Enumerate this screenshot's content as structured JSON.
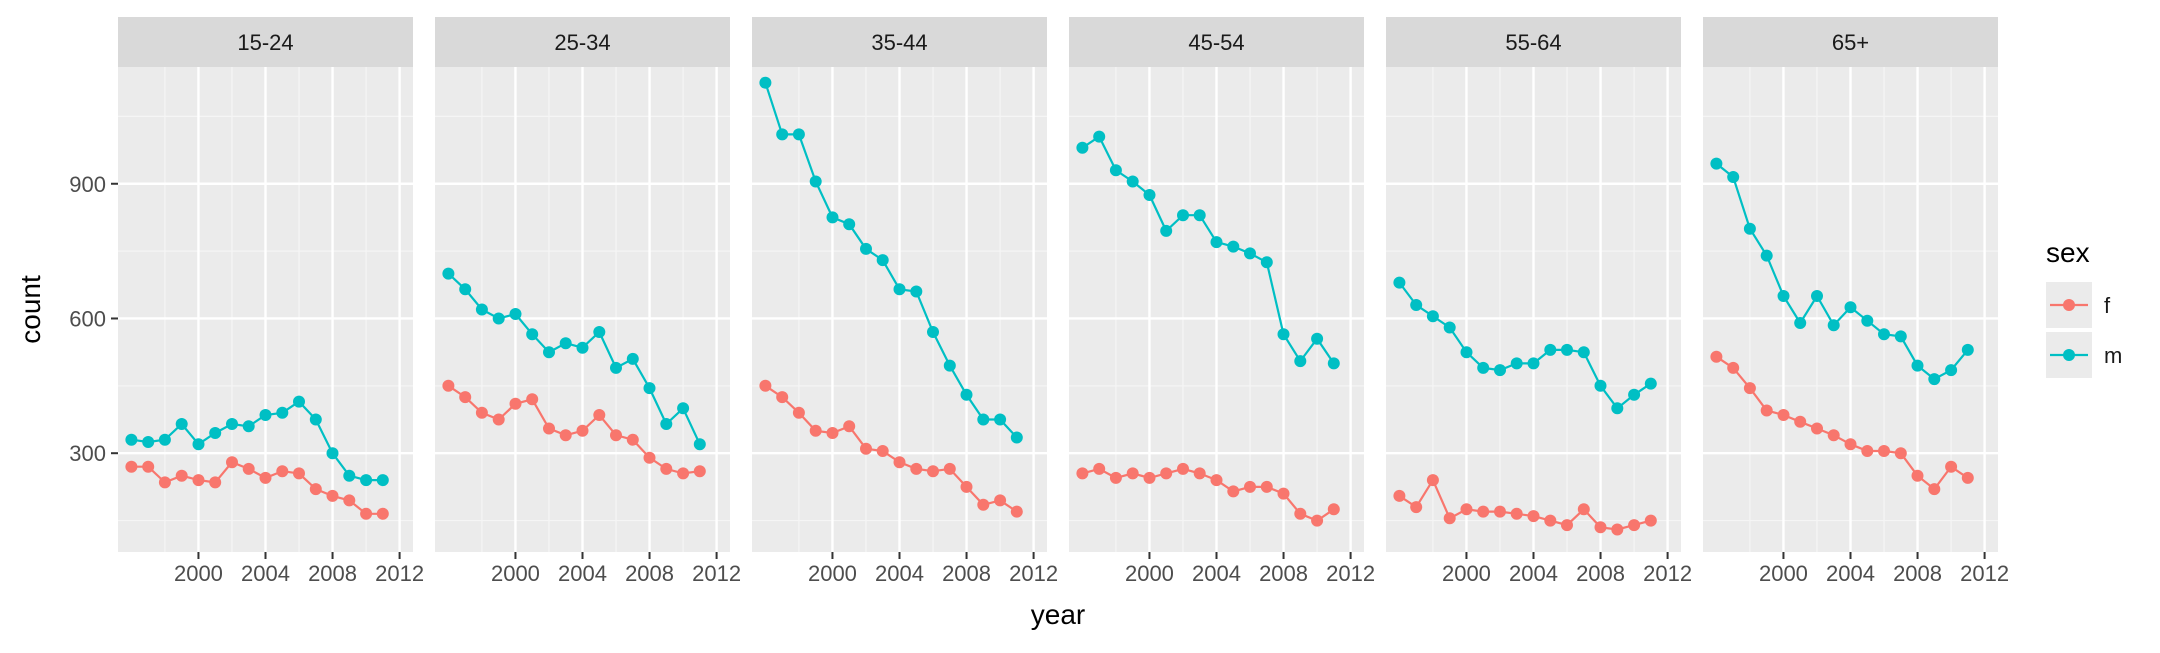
{
  "chart_data": {
    "type": "line",
    "facet_variable": "age group",
    "panels": [
      "15-24",
      "25-34",
      "35-44",
      "45-54",
      "55-64",
      "65+"
    ],
    "x": [
      1996,
      1997,
      1998,
      1999,
      2000,
      2001,
      2002,
      2003,
      2004,
      2005,
      2006,
      2007,
      2008,
      2009,
      2010,
      2011,
      2012
    ],
    "xlabel": "year",
    "ylabel": "count",
    "xlim": [
      1995.2,
      2012.8
    ],
    "ylim": [
      80,
      1160
    ],
    "x_ticks": [
      2000,
      2004,
      2008,
      2012
    ],
    "x_tick_labels": [
      "2000",
      "2004",
      "2008",
      "2012"
    ],
    "y_ticks": [
      300,
      600,
      900
    ],
    "y_tick_labels": [
      "300",
      "600",
      "900"
    ],
    "grid": true,
    "legend": {
      "title": "sex",
      "position": "right",
      "entries": [
        {
          "label": "f",
          "color": "#F8766D"
        },
        {
          "label": "m",
          "color": "#00BFC4"
        }
      ]
    },
    "colors": {
      "f": "#F8766D",
      "m": "#00BFC4",
      "panel_background": "#EBEBEB",
      "gridline": "#FFFFFF",
      "strip_background": "#D9D9D9"
    },
    "facets": [
      {
        "panel": "15-24",
        "series": [
          {
            "name": "f",
            "values": [
              270,
              270,
              235,
              250,
              240,
              235,
              280,
              265,
              245,
              260,
              255,
              220,
              205,
              195,
              165,
              165,
              null
            ]
          },
          {
            "name": "m",
            "values": [
              330,
              325,
              330,
              365,
              320,
              345,
              365,
              360,
              385,
              390,
              415,
              375,
              300,
              250,
              240,
              240,
              null
            ]
          }
        ]
      },
      {
        "panel": "25-34",
        "series": [
          {
            "name": "f",
            "values": [
              450,
              425,
              390,
              375,
              410,
              420,
              355,
              340,
              350,
              385,
              340,
              330,
              290,
              265,
              255,
              260,
              null
            ]
          },
          {
            "name": "m",
            "values": [
              700,
              665,
              620,
              600,
              610,
              565,
              525,
              545,
              535,
              570,
              490,
              510,
              445,
              365,
              400,
              320,
              null
            ]
          }
        ]
      },
      {
        "panel": "35-44",
        "series": [
          {
            "name": "f",
            "values": [
              450,
              425,
              390,
              350,
              345,
              360,
              310,
              305,
              280,
              265,
              260,
              265,
              225,
              185,
              195,
              170,
              null
            ]
          },
          {
            "name": "m",
            "values": [
              1125,
              1010,
              1010,
              905,
              825,
              810,
              755,
              730,
              665,
              660,
              570,
              495,
              430,
              375,
              375,
              335,
              null
            ]
          }
        ]
      },
      {
        "panel": "45-54",
        "series": [
          {
            "name": "f",
            "values": [
              255,
              265,
              245,
              255,
              245,
              255,
              265,
              255,
              240,
              215,
              225,
              225,
              210,
              165,
              150,
              175,
              null
            ]
          },
          {
            "name": "m",
            "values": [
              980,
              1005,
              930,
              905,
              875,
              795,
              830,
              830,
              770,
              760,
              745,
              725,
              565,
              505,
              555,
              500,
              null
            ]
          }
        ]
      },
      {
        "panel": "55-64",
        "series": [
          {
            "name": "f",
            "values": [
              205,
              180,
              240,
              155,
              175,
              170,
              170,
              165,
              160,
              150,
              140,
              175,
              135,
              130,
              140,
              150,
              null
            ]
          },
          {
            "name": "m",
            "values": [
              680,
              630,
              605,
              580,
              525,
              490,
              485,
              500,
              500,
              530,
              530,
              525,
              450,
              400,
              430,
              455,
              null
            ]
          }
        ]
      },
      {
        "panel": "65+",
        "series": [
          {
            "name": "f",
            "values": [
              515,
              490,
              445,
              395,
              385,
              370,
              355,
              340,
              320,
              305,
              305,
              300,
              250,
              220,
              270,
              245,
              null
            ]
          },
          {
            "name": "m",
            "values": [
              945,
              915,
              800,
              740,
              650,
              590,
              650,
              585,
              625,
              595,
              565,
              560,
              495,
              465,
              485,
              530,
              null
            ]
          }
        ]
      }
    ]
  }
}
